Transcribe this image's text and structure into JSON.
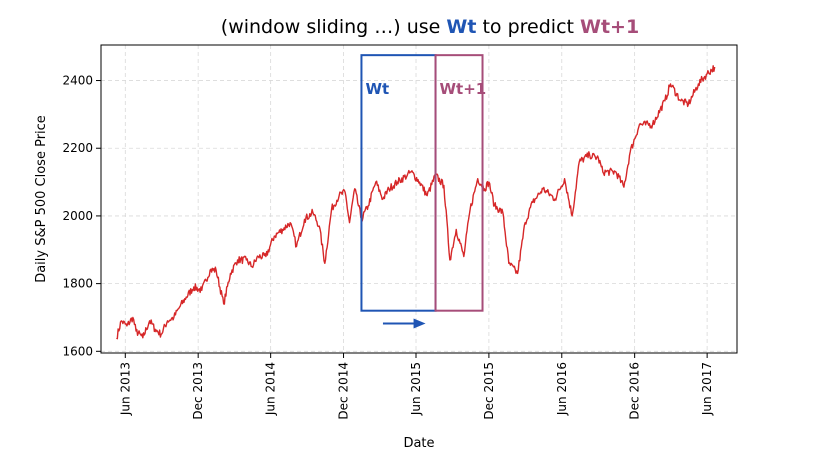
{
  "title": {
    "prefix": "(window sliding …) use ",
    "wt": "Wt",
    "middle": " to predict ",
    "wt1": "Wt+1"
  },
  "colors": {
    "series": "#d62728",
    "window_t": "#1f55b4",
    "window_t1": "#a64d79",
    "grid": "#d9d9d9"
  },
  "chart_data": {
    "type": "line",
    "xlabel": "Date",
    "ylabel": "Daily S&P 500 Close Price",
    "xlim": [
      "2013-04-01",
      "2017-08-15"
    ],
    "ylim": [
      1595,
      2505
    ],
    "grid": true,
    "x_ticks": [
      {
        "date": "2013-06-01",
        "label": "Jun 2013"
      },
      {
        "date": "2013-12-01",
        "label": "Dec 2013"
      },
      {
        "date": "2014-06-01",
        "label": "Jun 2014"
      },
      {
        "date": "2014-12-01",
        "label": "Dec 2014"
      },
      {
        "date": "2015-06-01",
        "label": "Jun 2015"
      },
      {
        "date": "2015-12-01",
        "label": "Dec 2015"
      },
      {
        "date": "2016-06-01",
        "label": "Jun 2016"
      },
      {
        "date": "2016-12-01",
        "label": "Dec 2016"
      },
      {
        "date": "2017-06-01",
        "label": "Jun 2017"
      }
    ],
    "y_ticks": [
      1600,
      1800,
      2000,
      2200,
      2400
    ],
    "series": [
      {
        "points": [
          [
            "2013-05-10",
            1640
          ],
          [
            "2013-05-22",
            1690
          ],
          [
            "2013-06-05",
            1675
          ],
          [
            "2013-06-20",
            1700
          ],
          [
            "2013-06-28",
            1660
          ],
          [
            "2013-07-15",
            1640
          ],
          [
            "2013-08-01",
            1690
          ],
          [
            "2013-08-15",
            1665
          ],
          [
            "2013-08-30",
            1650
          ],
          [
            "2013-09-15",
            1690
          ],
          [
            "2013-10-01",
            1700
          ],
          [
            "2013-10-15",
            1730
          ],
          [
            "2013-11-01",
            1760
          ],
          [
            "2013-11-20",
            1790
          ],
          [
            "2013-12-10",
            1780
          ],
          [
            "2013-12-31",
            1840
          ],
          [
            "2014-01-15",
            1840
          ],
          [
            "2014-02-03",
            1740
          ],
          [
            "2014-02-20",
            1830
          ],
          [
            "2014-03-10",
            1870
          ],
          [
            "2014-04-01",
            1870
          ],
          [
            "2014-04-15",
            1850
          ],
          [
            "2014-05-01",
            1880
          ],
          [
            "2014-05-20",
            1880
          ],
          [
            "2014-06-10",
            1940
          ],
          [
            "2014-07-01",
            1960
          ],
          [
            "2014-07-20",
            1980
          ],
          [
            "2014-08-05",
            1910
          ],
          [
            "2014-08-25",
            1990
          ],
          [
            "2014-09-15",
            2010
          ],
          [
            "2014-10-01",
            1970
          ],
          [
            "2014-10-15",
            1860
          ],
          [
            "2014-11-01",
            2020
          ],
          [
            "2014-11-20",
            2060
          ],
          [
            "2014-12-05",
            2070
          ],
          [
            "2014-12-16",
            1980
          ],
          [
            "2014-12-29",
            2080
          ],
          [
            "2015-01-15",
            1990
          ],
          [
            "2015-02-01",
            2030
          ],
          [
            "2015-02-20",
            2100
          ],
          [
            "2015-03-10",
            2050
          ],
          [
            "2015-03-25",
            2080
          ],
          [
            "2015-04-15",
            2100
          ],
          [
            "2015-05-10",
            2120
          ],
          [
            "2015-05-20",
            2130
          ],
          [
            "2015-06-10",
            2100
          ],
          [
            "2015-06-29",
            2060
          ],
          [
            "2015-07-20",
            2120
          ],
          [
            "2015-08-10",
            2090
          ],
          [
            "2015-08-25",
            1870
          ],
          [
            "2015-09-10",
            1960
          ],
          [
            "2015-09-29",
            1880
          ],
          [
            "2015-10-15",
            2020
          ],
          [
            "2015-11-03",
            2110
          ],
          [
            "2015-11-20",
            2080
          ],
          [
            "2015-12-01",
            2100
          ],
          [
            "2015-12-15",
            2030
          ],
          [
            "2016-01-05",
            2010
          ],
          [
            "2016-01-20",
            1860
          ],
          [
            "2016-02-11",
            1830
          ],
          [
            "2016-03-01",
            1980
          ],
          [
            "2016-03-20",
            2040
          ],
          [
            "2016-04-15",
            2080
          ],
          [
            "2016-05-15",
            2050
          ],
          [
            "2016-06-08",
            2110
          ],
          [
            "2016-06-27",
            2000
          ],
          [
            "2016-07-15",
            2160
          ],
          [
            "2016-08-10",
            2180
          ],
          [
            "2016-09-01",
            2170
          ],
          [
            "2016-09-12",
            2130
          ],
          [
            "2016-10-15",
            2130
          ],
          [
            "2016-11-04",
            2085
          ],
          [
            "2016-11-20",
            2190
          ],
          [
            "2016-12-13",
            2270
          ],
          [
            "2017-01-15",
            2270
          ],
          [
            "2017-02-15",
            2340
          ],
          [
            "2017-03-01",
            2390
          ],
          [
            "2017-03-27",
            2340
          ],
          [
            "2017-04-15",
            2330
          ],
          [
            "2017-05-10",
            2390
          ],
          [
            "2017-06-01",
            2420
          ],
          [
            "2017-06-20",
            2440
          ]
        ]
      }
    ],
    "windows": [
      {
        "label": "Wt",
        "start": "2015-01-15",
        "end": "2015-07-20",
        "ymin": 1720,
        "ymax": 2475
      },
      {
        "label": "Wt+1",
        "start": "2015-07-20",
        "end": "2015-11-15",
        "ymin": 1720,
        "ymax": 2475
      }
    ],
    "arrow": {
      "start": "2015-03-10",
      "end": "2015-06-25",
      "y": 1682
    }
  }
}
